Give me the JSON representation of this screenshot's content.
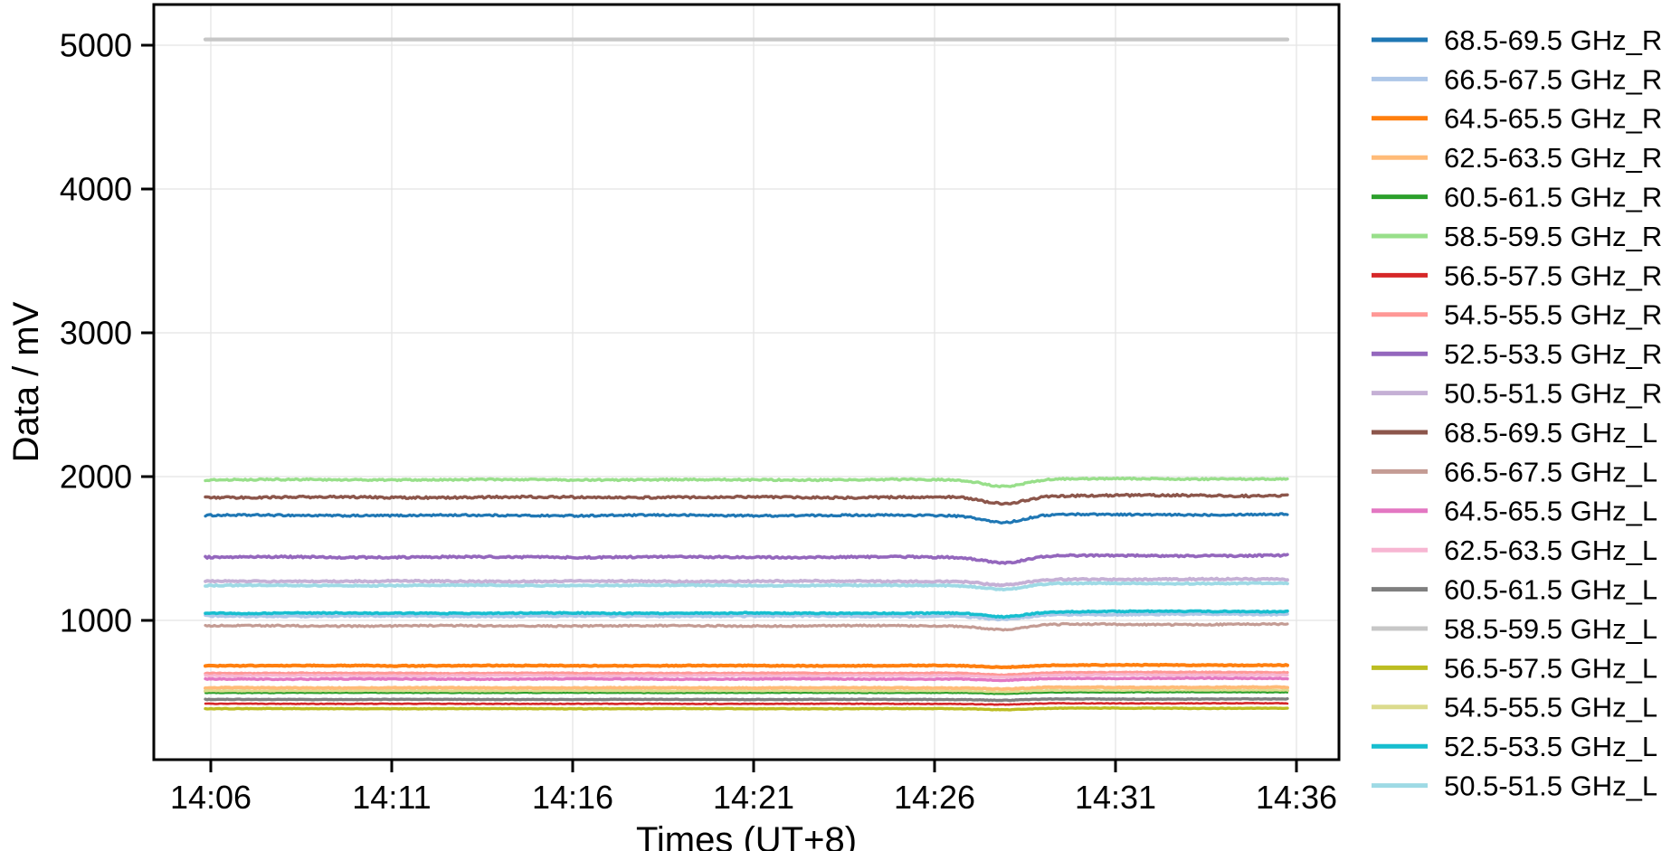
{
  "chart_data": {
    "type": "line",
    "title": "",
    "xlabel": "Times (UT+8)",
    "ylabel": "Data / mV",
    "x_tick_labels": [
      "14:06",
      "14:11",
      "14:16",
      "14:21",
      "14:26",
      "14:31",
      "14:36"
    ],
    "x_tick_minutes": [
      6,
      11,
      16,
      21,
      26,
      31,
      36
    ],
    "y_tick_values": [
      1000,
      2000,
      3000,
      4000,
      5000
    ],
    "y_tick_labels": [
      "1000",
      "2000",
      "3000",
      "4000",
      "5000"
    ],
    "ylim_mv": [
      30,
      5285
    ],
    "x_data_range_minutes": [
      5.85,
      35.78
    ],
    "grid": true,
    "legend_position": "right-outside",
    "dip_event": {
      "time_label": "~14:28",
      "center_min": 27.9,
      "sigma_min": 0.55,
      "recovery_center_min": 28.7,
      "note": "brief dip in most channels near 14:28, slight recovery offset after"
    },
    "series": [
      {
        "label": "68.5-69.5 GHz_R",
        "color": "#1f77b4",
        "base_mv": 1730,
        "dip_mv": 48,
        "post_mv": 6,
        "line_width": 3.2,
        "noise_mv": 6,
        "values_at_ticks": [
          1730,
          1730,
          1730,
          1730,
          1730,
          1736,
          1736
        ]
      },
      {
        "label": "66.5-67.5 GHz_R",
        "color": "#aec7e8",
        "base_mv": 1030,
        "dip_mv": 25,
        "post_mv": 12,
        "line_width": 3.6,
        "noise_mv": 5,
        "values_at_ticks": [
          1030,
          1030,
          1030,
          1030,
          1030,
          1042,
          1042
        ]
      },
      {
        "label": "64.5-65.5 GHz_R",
        "color": "#ff7f0e",
        "base_mv": 685,
        "dip_mv": 10,
        "post_mv": 4,
        "line_width": 4.0,
        "noise_mv": 3,
        "values_at_ticks": [
          685,
          685,
          685,
          685,
          685,
          689,
          689
        ]
      },
      {
        "label": "62.5-63.5 GHz_R",
        "color": "#ffbb78",
        "base_mv": 530,
        "dip_mv": 8,
        "post_mv": 4,
        "line_width": 4.0,
        "noise_mv": 3,
        "values_at_ticks": [
          530,
          530,
          530,
          530,
          530,
          534,
          534
        ]
      },
      {
        "label": "60.5-61.5 GHz_R",
        "color": "#2ca02c",
        "base_mv": 495,
        "dip_mv": 8,
        "post_mv": 4,
        "line_width": 2.0,
        "noise_mv": 2,
        "values_at_ticks": [
          495,
          495,
          495,
          495,
          495,
          499,
          499
        ]
      },
      {
        "label": "58.5-59.5 GHz_R",
        "color": "#98df8a",
        "base_mv": 1978,
        "dip_mv": 45,
        "post_mv": 6,
        "line_width": 3.4,
        "noise_mv": 5,
        "values_at_ticks": [
          1978,
          1978,
          1978,
          1978,
          1978,
          1984,
          1984
        ]
      },
      {
        "label": "56.5-57.5 GHz_R",
        "color": "#d62728",
        "base_mv": 420,
        "dip_mv": 6,
        "post_mv": 3,
        "line_width": 2.6,
        "noise_mv": 2,
        "values_at_ticks": [
          420,
          420,
          420,
          420,
          420,
          423,
          423
        ]
      },
      {
        "label": "54.5-55.5 GHz_R",
        "color": "#ff9896",
        "base_mv": 632,
        "dip_mv": 12,
        "post_mv": 6,
        "line_width": 3.4,
        "noise_mv": 3,
        "values_at_ticks": [
          632,
          632,
          632,
          632,
          632,
          638,
          638
        ]
      },
      {
        "label": "52.5-53.5 GHz_R",
        "color": "#9467bd",
        "base_mv": 1440,
        "dip_mv": 38,
        "post_mv": 10,
        "line_width": 3.6,
        "noise_mv": 6,
        "values_at_ticks": [
          1440,
          1440,
          1440,
          1440,
          1440,
          1450,
          1450
        ]
      },
      {
        "label": "50.5-51.5 GHz_R",
        "color": "#c5b0d5",
        "base_mv": 1272,
        "dip_mv": 28,
        "post_mv": 14,
        "line_width": 3.8,
        "noise_mv": 5,
        "values_at_ticks": [
          1272,
          1272,
          1272,
          1272,
          1272,
          1286,
          1286
        ]
      },
      {
        "label": "68.5-69.5 GHz_L",
        "color": "#8c564b",
        "base_mv": 1856,
        "dip_mv": 45,
        "post_mv": 12,
        "line_width": 3.4,
        "noise_mv": 7,
        "values_at_ticks": [
          1856,
          1856,
          1856,
          1856,
          1856,
          1868,
          1868
        ]
      },
      {
        "label": "66.5-67.5 GHz_L",
        "color": "#c49c94",
        "base_mv": 962,
        "dip_mv": 25,
        "post_mv": 10,
        "line_width": 3.2,
        "noise_mv": 5,
        "values_at_ticks": [
          962,
          962,
          962,
          962,
          962,
          972,
          972
        ]
      },
      {
        "label": "64.5-65.5 GHz_L",
        "color": "#e377c2",
        "base_mv": 592,
        "dip_mv": 10,
        "post_mv": 5,
        "line_width": 3.4,
        "noise_mv": 3,
        "values_at_ticks": [
          592,
          592,
          592,
          592,
          592,
          597,
          597
        ]
      },
      {
        "label": "62.5-63.5 GHz_L",
        "color": "#f7b6d2",
        "base_mv": 616,
        "dip_mv": 10,
        "post_mv": 5,
        "line_width": 3.2,
        "noise_mv": 3,
        "values_at_ticks": [
          616,
          616,
          616,
          616,
          616,
          621,
          621
        ]
      },
      {
        "label": "60.5-61.5 GHz_L",
        "color": "#7f7f7f",
        "base_mv": 450,
        "dip_mv": 6,
        "post_mv": 3,
        "line_width": 3.4,
        "noise_mv": 2,
        "values_at_ticks": [
          450,
          450,
          450,
          450,
          450,
          453,
          453
        ]
      },
      {
        "label": "58.5-59.5 GHz_L",
        "color": "#c7c7c7",
        "base_mv": 5040,
        "dip_mv": 0,
        "post_mv": 0,
        "line_width": 4.2,
        "noise_mv": 0,
        "values_at_ticks": [
          5040,
          5040,
          5040,
          5040,
          5040,
          5040,
          5040
        ]
      },
      {
        "label": "56.5-57.5 GHz_L",
        "color": "#bcbd22",
        "base_mv": 386,
        "dip_mv": 6,
        "post_mv": 3,
        "line_width": 3.4,
        "noise_mv": 2,
        "values_at_ticks": [
          386,
          386,
          386,
          386,
          386,
          389,
          389
        ]
      },
      {
        "label": "54.5-55.5 GHz_L",
        "color": "#dbdb8d",
        "base_mv": 505,
        "dip_mv": 8,
        "post_mv": 4,
        "line_width": 4.0,
        "noise_mv": 3,
        "values_at_ticks": [
          505,
          505,
          505,
          505,
          505,
          509,
          509
        ]
      },
      {
        "label": "52.5-53.5 GHz_L",
        "color": "#17becf",
        "base_mv": 1050,
        "dip_mv": 26,
        "post_mv": 12,
        "line_width": 3.6,
        "noise_mv": 4,
        "values_at_ticks": [
          1050,
          1050,
          1050,
          1050,
          1050,
          1062,
          1062
        ]
      },
      {
        "label": "50.5-51.5 GHz_L",
        "color": "#9edae5",
        "base_mv": 1243,
        "dip_mv": 26,
        "post_mv": 14,
        "line_width": 3.8,
        "noise_mv": 4,
        "values_at_ticks": [
          1243,
          1243,
          1243,
          1243,
          1243,
          1257,
          1257
        ]
      }
    ],
    "colors": {
      "axis": "#000000",
      "grid": "#e4e4e4",
      "background": "#ffffff"
    }
  }
}
